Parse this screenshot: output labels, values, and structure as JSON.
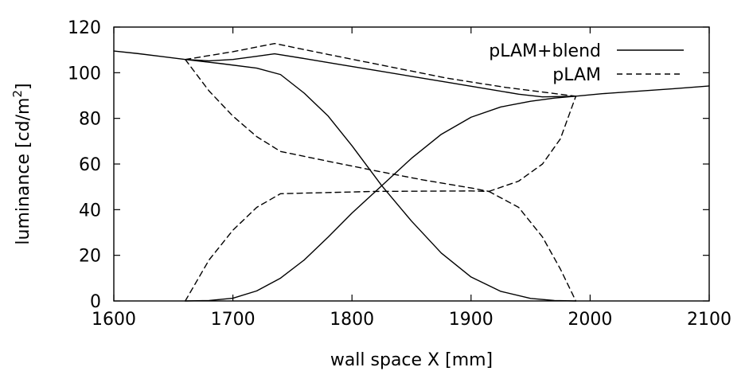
{
  "chart_data": {
    "type": "line",
    "xlabel": "wall space X [mm]",
    "ylabel": {
      "prefix": "luminance [cd/m",
      "exponent": "2",
      "suffix": "]"
    },
    "xlim": [
      1600,
      2100
    ],
    "ylim": [
      0,
      120
    ],
    "xticks": [
      1600,
      1700,
      1800,
      1900,
      2000,
      2100
    ],
    "yticks": [
      0,
      20,
      40,
      60,
      80,
      100,
      120
    ],
    "grid": false,
    "legend_position": "top-right",
    "legend": [
      {
        "label": "pLAM+blend",
        "style": "solid"
      },
      {
        "label": "pLAM",
        "style": "dashed"
      }
    ],
    "series": [
      {
        "name": "pLAM+blend",
        "style": "solid",
        "color": "#000000",
        "curves": [
          {
            "x": [
              1600,
              1620,
              1640,
              1660,
              1680,
              1700,
              1720,
              1735,
              1760,
              1790,
              1820,
              1850,
              1880,
              1910,
              1940,
              1960,
              1988,
              2010,
              2040,
              2070,
              2100
            ],
            "y": [
              109.5,
              108.4,
              107.1,
              105.8,
              105.2,
              105.8,
              107.2,
              108.3,
              106.2,
              103.6,
              101.0,
              98.4,
              95.8,
              93.2,
              90.6,
              89.4,
              89.7,
              90.8,
              91.9,
              93.0,
              94.2
            ]
          },
          {
            "x": [
              1660,
              1690,
              1720,
              1740,
              1760,
              1780,
              1800,
              1825,
              1850,
              1875,
              1900,
              1925,
              1950,
              1970,
              1988
            ],
            "y": [
              105.8,
              104.0,
              102.0,
              99.2,
              91.0,
              81.0,
              68.0,
              50.5,
              35.0,
              21.0,
              10.5,
              4.2,
              1.1,
              0.2,
              0.0
            ]
          },
          {
            "x": [
              1660,
              1680,
              1700,
              1720,
              1740,
              1760,
              1780,
              1800,
              1825,
              1850,
              1875,
              1900,
              1925,
              1950,
              1970,
              1988
            ],
            "y": [
              0.0,
              0.2,
              1.2,
              4.4,
              10.0,
              18.0,
              28.0,
              38.5,
              50.5,
              62.5,
              73.0,
              80.5,
              85.0,
              87.5,
              88.9,
              89.7
            ]
          }
        ]
      },
      {
        "name": "pLAM",
        "style": "dashed",
        "color": "#000000",
        "curves": [
          {
            "x": [
              1660,
              1700,
              1735,
              1780,
              1830,
              1880,
              1930,
              1988
            ],
            "y": [
              105.8,
              109.2,
              112.8,
              108.0,
              102.8,
              97.6,
              93.5,
              89.7
            ]
          },
          {
            "x": [
              1660,
              1680,
              1700,
              1720,
              1740,
              1780,
              1820,
              1860,
              1900,
              1915
            ],
            "y": [
              105.8,
              92.0,
              81.0,
              72.0,
              65.5,
              61.2,
              57.0,
              53.0,
              49.5,
              48.0
            ]
          },
          {
            "x": [
              1660,
              1680,
              1700,
              1720,
              1740,
              1780,
              1820,
              1860,
              1900,
              1915
            ],
            "y": [
              0.0,
              18.0,
              31.0,
              41.0,
              47.0,
              47.5,
              48.0,
              48.1,
              48.2,
              48.0
            ]
          },
          {
            "x": [
              1915,
              1940,
              1960,
              1975,
              1988
            ],
            "y": [
              48.0,
              52.5,
              60.0,
              71.0,
              89.7
            ]
          },
          {
            "x": [
              1915,
              1940,
              1960,
              1975,
              1988
            ],
            "y": [
              48.0,
              41.0,
              28.0,
              14.0,
              0.0
            ]
          }
        ]
      }
    ]
  }
}
